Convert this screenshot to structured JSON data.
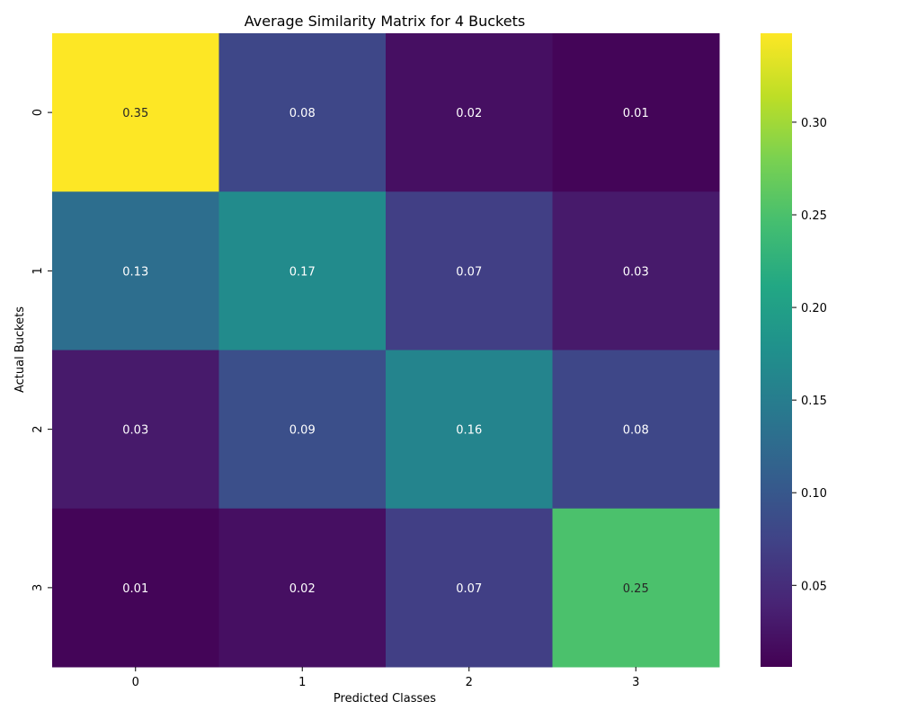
{
  "chart_data": {
    "type": "heatmap",
    "title": "Average Similarity Matrix for 4 Buckets",
    "xlabel": "Predicted Classes",
    "ylabel": "Actual Buckets",
    "x_categories": [
      "0",
      "1",
      "2",
      "3"
    ],
    "y_categories": [
      "0",
      "1",
      "2",
      "3"
    ],
    "values": [
      [
        0.35,
        0.08,
        0.02,
        0.01
      ],
      [
        0.13,
        0.17,
        0.07,
        0.03
      ],
      [
        0.03,
        0.09,
        0.16,
        0.08
      ],
      [
        0.01,
        0.02,
        0.07,
        0.25
      ]
    ],
    "cell_labels": [
      [
        "0.35",
        "0.08",
        "0.02",
        "0.01"
      ],
      [
        "0.13",
        "0.17",
        "0.07",
        "0.03"
      ],
      [
        "0.03",
        "0.09",
        "0.16",
        "0.08"
      ],
      [
        "0.01",
        "0.02",
        "0.07",
        "0.25"
      ]
    ],
    "colormap": "viridis",
    "colorbar": {
      "range": [
        0.006,
        0.348
      ],
      "ticks": [
        0.05,
        0.1,
        0.15,
        0.2,
        0.25,
        0.3
      ],
      "tick_labels": [
        "0.05",
        "0.10",
        "0.15",
        "0.20",
        "0.25",
        "0.30"
      ]
    },
    "grid": false,
    "legend": "colorbar-right"
  }
}
